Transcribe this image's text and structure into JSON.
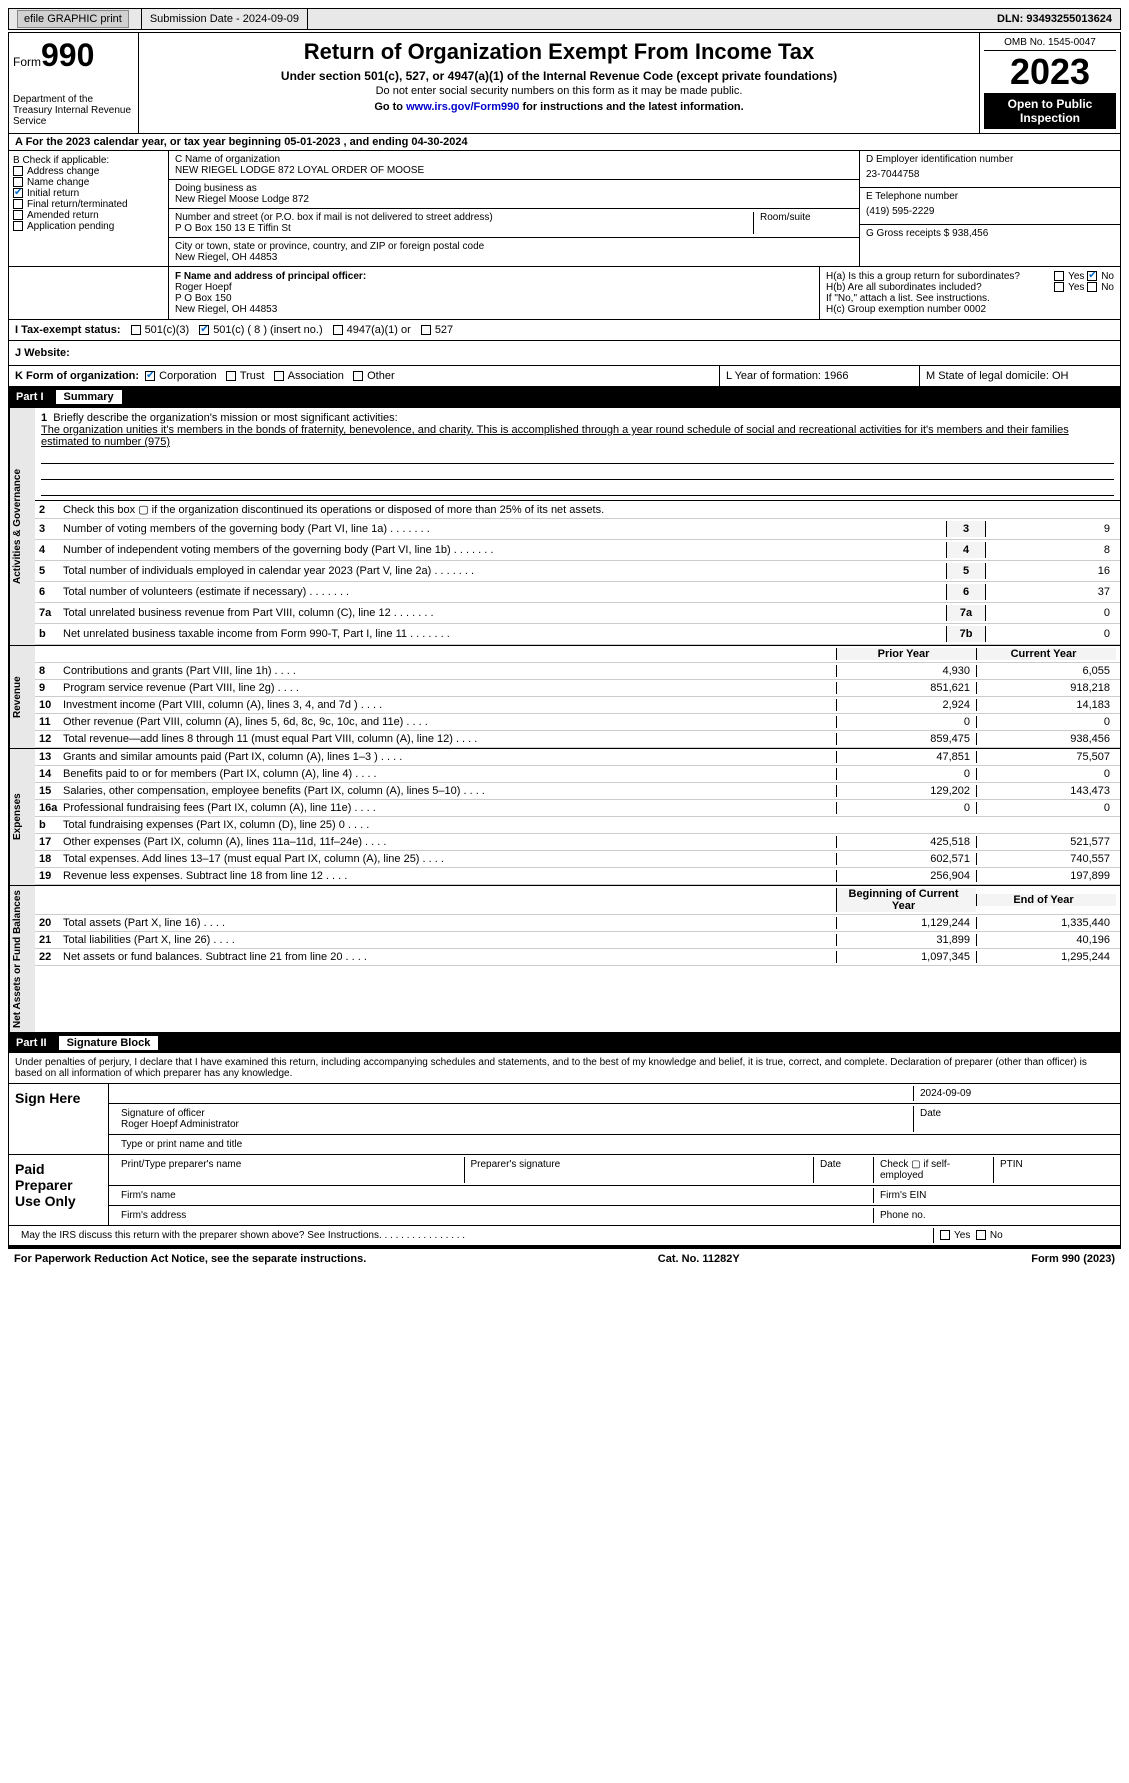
{
  "topbar": {
    "efile": "efile GRAPHIC print",
    "submission": "Submission Date - 2024-09-09",
    "dln": "DLN: 93493255013624"
  },
  "header": {
    "form": "Form",
    "num": "990",
    "dept": "Department of the Treasury Internal Revenue Service",
    "title": "Return of Organization Exempt From Income Tax",
    "sub": "Under section 501(c), 527, or 4947(a)(1) of the Internal Revenue Code (except private foundations)",
    "note": "Do not enter social security numbers on this form as it may be made public.",
    "link_pre": "Go to ",
    "link": "www.irs.gov/Form990",
    "link_post": " for instructions and the latest information.",
    "omb": "OMB No. 1545-0047",
    "year": "2023",
    "public": "Open to Public Inspection"
  },
  "rowA": "A For the 2023 calendar year, or tax year beginning 05-01-2023   , and ending 04-30-2024",
  "colB": {
    "hdr": "B Check if applicable:",
    "addr": "Address change",
    "name": "Name change",
    "init": "Initial return",
    "final": "Final return/terminated",
    "amend": "Amended return",
    "app": "Application pending"
  },
  "colC": {
    "name_lbl": "C Name of organization",
    "name": "NEW RIEGEL LODGE 872 LOYAL ORDER OF MOOSE",
    "dba_lbl": "Doing business as",
    "dba": "New Riegel Moose Lodge 872",
    "street_lbl": "Number and street (or P.O. box if mail is not delivered to street address)",
    "street": "P O Box 150 13 E Tiffin St",
    "room_lbl": "Room/suite",
    "city_lbl": "City or town, state or province, country, and ZIP or foreign postal code",
    "city": "New Riegel, OH  44853"
  },
  "colD": {
    "ein_lbl": "D Employer identification number",
    "ein": "23-7044758",
    "tel_lbl": "E Telephone number",
    "tel": "(419) 595-2229",
    "gross_lbl": "G Gross receipts $",
    "gross": "938,456"
  },
  "secF": {
    "lbl": "F  Name and address of principal officer:",
    "name": "Roger Hoepf",
    "addr1": "P O Box 150",
    "addr2": "New Riegel, OH  44853"
  },
  "secH": {
    "ha": "H(a)  Is this a group return for subordinates?",
    "hb": "H(b)  Are all subordinates included?",
    "hb_note": "If \"No,\" attach a list. See instructions.",
    "hc": "H(c)  Group exemption number    0002",
    "yes": "Yes",
    "no": "No"
  },
  "secI": {
    "lbl": "I    Tax-exempt status:",
    "c3": "501(c)(3)",
    "c": "501(c) ( 8 ) (insert no.)",
    "a1": "4947(a)(1) or",
    "s527": "527"
  },
  "secJ": "J   Website:",
  "secK": {
    "lbl": "K Form of organization:",
    "corp": "Corporation",
    "trust": "Trust",
    "assoc": "Association",
    "other": "Other"
  },
  "secL": "L Year of formation: 1966",
  "secM": "M State of legal domicile: OH",
  "part1": {
    "label": "Part I",
    "title": "Summary",
    "side1": "Activities & Governance",
    "side2": "Revenue",
    "side3": "Expenses",
    "side4": "Net Assets or Fund Balances",
    "l1": "Briefly describe the organization's mission or most significant activities:",
    "l1txt": "The organization unities it's members in the bonds of fraternity, benevolence, and charity. This is accomplished through a year round schedule of social and recreational activities for it's members and their families estimated to number (975)",
    "l2": "Check this box  ▢  if the organization discontinued its operations or disposed of more than 25% of its net assets.",
    "lines_gov": [
      {
        "n": "3",
        "t": "Number of voting members of the governing body (Part VI, line 1a)",
        "b": "3",
        "v": "9"
      },
      {
        "n": "4",
        "t": "Number of independent voting members of the governing body (Part VI, line 1b)",
        "b": "4",
        "v": "8"
      },
      {
        "n": "5",
        "t": "Total number of individuals employed in calendar year 2023 (Part V, line 2a)",
        "b": "5",
        "v": "16"
      },
      {
        "n": "6",
        "t": "Total number of volunteers (estimate if necessary)",
        "b": "6",
        "v": "37"
      },
      {
        "n": "7a",
        "t": "Total unrelated business revenue from Part VIII, column (C), line 12",
        "b": "7a",
        "v": "0"
      },
      {
        "n": "b",
        "t": "Net unrelated business taxable income from Form 990-T, Part I, line 11",
        "b": "7b",
        "v": "0"
      }
    ],
    "hdr_prior": "Prior Year",
    "hdr_curr": "Current Year",
    "lines_rev": [
      {
        "n": "8",
        "t": "Contributions and grants (Part VIII, line 1h)",
        "p": "4,930",
        "c": "6,055"
      },
      {
        "n": "9",
        "t": "Program service revenue (Part VIII, line 2g)",
        "p": "851,621",
        "c": "918,218"
      },
      {
        "n": "10",
        "t": "Investment income (Part VIII, column (A), lines 3, 4, and 7d )",
        "p": "2,924",
        "c": "14,183"
      },
      {
        "n": "11",
        "t": "Other revenue (Part VIII, column (A), lines 5, 6d, 8c, 9c, 10c, and 11e)",
        "p": "0",
        "c": "0"
      },
      {
        "n": "12",
        "t": "Total revenue—add lines 8 through 11 (must equal Part VIII, column (A), line 12)",
        "p": "859,475",
        "c": "938,456"
      }
    ],
    "lines_exp": [
      {
        "n": "13",
        "t": "Grants and similar amounts paid (Part IX, column (A), lines 1–3 )",
        "p": "47,851",
        "c": "75,507"
      },
      {
        "n": "14",
        "t": "Benefits paid to or for members (Part IX, column (A), line 4)",
        "p": "0",
        "c": "0"
      },
      {
        "n": "15",
        "t": "Salaries, other compensation, employee benefits (Part IX, column (A), lines 5–10)",
        "p": "129,202",
        "c": "143,473"
      },
      {
        "n": "16a",
        "t": "Professional fundraising fees (Part IX, column (A), line 11e)",
        "p": "0",
        "c": "0"
      },
      {
        "n": "b",
        "t": "Total fundraising expenses (Part IX, column (D), line 25) 0",
        "p": "",
        "c": "",
        "shade": true
      },
      {
        "n": "17",
        "t": "Other expenses (Part IX, column (A), lines 11a–11d, 11f–24e)",
        "p": "425,518",
        "c": "521,577"
      },
      {
        "n": "18",
        "t": "Total expenses. Add lines 13–17 (must equal Part IX, column (A), line 25)",
        "p": "602,571",
        "c": "740,557"
      },
      {
        "n": "19",
        "t": "Revenue less expenses. Subtract line 18 from line 12",
        "p": "256,904",
        "c": "197,899"
      }
    ],
    "hdr_beg": "Beginning of Current Year",
    "hdr_end": "End of Year",
    "lines_net": [
      {
        "n": "20",
        "t": "Total assets (Part X, line 16)",
        "p": "1,129,244",
        "c": "1,335,440"
      },
      {
        "n": "21",
        "t": "Total liabilities (Part X, line 26)",
        "p": "31,899",
        "c": "40,196"
      },
      {
        "n": "22",
        "t": "Net assets or fund balances. Subtract line 21 from line 20",
        "p": "1,097,345",
        "c": "1,295,244"
      }
    ]
  },
  "part2": {
    "label": "Part II",
    "title": "Signature Block",
    "decl": "Under penalties of perjury, I declare that I have examined this return, including accompanying schedules and statements, and to the best of my knowledge and belief, it is true, correct, and complete. Declaration of preparer (other than officer) is based on all information of which preparer has any knowledge.",
    "sign": "Sign Here",
    "sig_off": "Signature of officer",
    "sig_date": "2024-09-09",
    "officer": "Roger Hoepf Administrator",
    "type_name": "Type or print name and title",
    "paid": "Paid Preparer Use Only",
    "prep_name": "Print/Type preparer's name",
    "prep_sig": "Preparer's signature",
    "date": "Date",
    "check": "Check ▢ if self-employed",
    "ptin": "PTIN",
    "firm": "Firm's name",
    "ein": "Firm's EIN",
    "addr": "Firm's address",
    "phone": "Phone no.",
    "may": "May the IRS discuss this return with the preparer shown above? See Instructions."
  },
  "footer": {
    "left": "For Paperwork Reduction Act Notice, see the separate instructions.",
    "mid": "Cat. No. 11282Y",
    "right": "Form 990 (2023)"
  }
}
